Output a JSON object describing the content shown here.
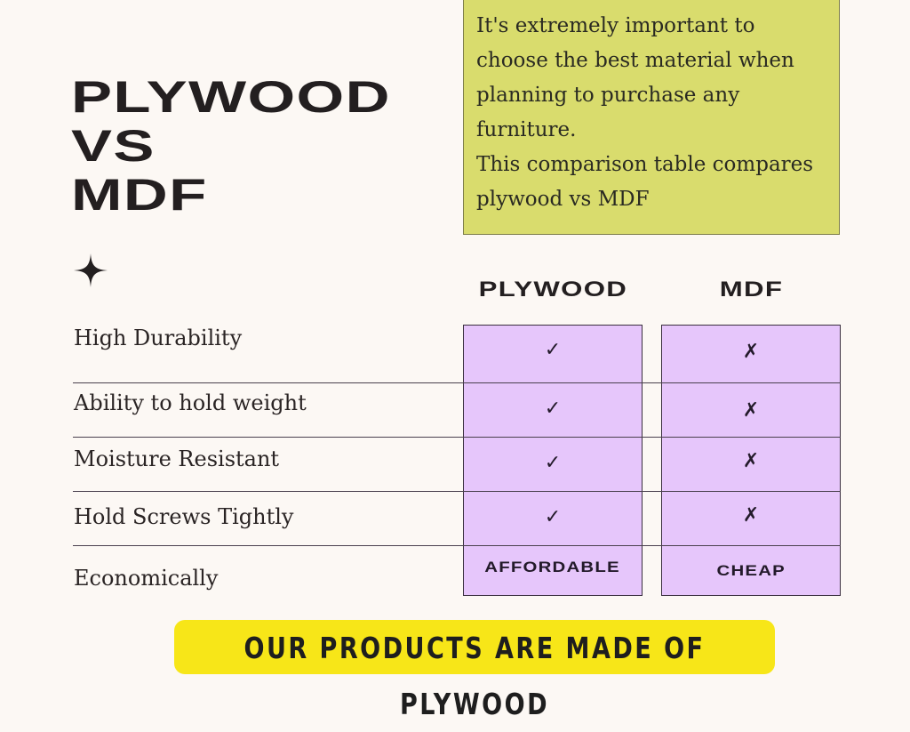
{
  "title": {
    "lines": [
      "PLYWOOD",
      "VS",
      "MDF"
    ]
  },
  "intro": {
    "paragraph1": "It's extremely important to choose the best material when planning to purchase any furniture.",
    "paragraph2": "This comparison table compares plywood  vs MDF"
  },
  "table": {
    "columns": [
      "PLYWOOD",
      "MDF"
    ],
    "rows": [
      {
        "label": "High Durability",
        "plywood": "✓",
        "mdf": "✗"
      },
      {
        "label": "Ability to hold weight",
        "plywood": "✓",
        "mdf": "✗"
      },
      {
        "label": "Moisture Resistant",
        "plywood": "✓",
        "mdf": "✗"
      },
      {
        "label": "Hold Screws Tightly",
        "plywood": "✓",
        "mdf": "✗"
      },
      {
        "label": "Economically",
        "plywood": "AFFORDABLE",
        "mdf": "CHEAP"
      }
    ]
  },
  "banner": {
    "text": "OUR PRODUCTS ARE MADE OF PLYWOOD"
  },
  "colors": {
    "background": "#fcf8f4",
    "intro_box": "#d9dc6d",
    "table_cells": "#e6c6fb",
    "banner": "#f7e618",
    "text": "#231f20"
  },
  "icons": {
    "decoration": "four-point-sparkle-icon",
    "yes": "check-icon",
    "no": "cross-icon"
  }
}
